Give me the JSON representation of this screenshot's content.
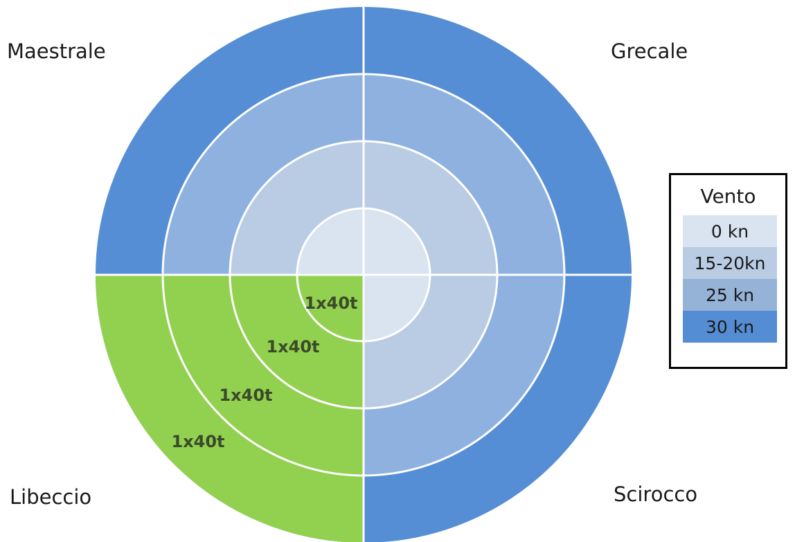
{
  "corners": {
    "nw": "Maestrale",
    "ne": "Grecale",
    "sw": "Libeccio",
    "se": "Scirocco"
  },
  "legend": {
    "title": "Vento",
    "items": [
      {
        "label": "0 kn",
        "color": "#dae3f0"
      },
      {
        "label": "15-20kn",
        "color": "#b9cce4"
      },
      {
        "label": "25 kn",
        "color": "#95b3d7"
      },
      {
        "label": "30 kn",
        "color": "#548dd4"
      }
    ]
  },
  "rings": [
    {
      "level": "0 kn",
      "color": "#dae3f0"
    },
    {
      "level": "15-20kn",
      "color": "#b9cce4"
    },
    {
      "level": "25 kn",
      "color": "#8eb1e0"
    },
    {
      "level": "30 kn",
      "color": "#558ed5"
    }
  ],
  "highlight": {
    "sector": "Libeccio",
    "color": "#92d050",
    "ring_label": "1x40t",
    "text_color": "#3b4a29"
  },
  "ring_labels": [
    "1x40t",
    "1x40t",
    "1x40t",
    "1x40t"
  ]
}
